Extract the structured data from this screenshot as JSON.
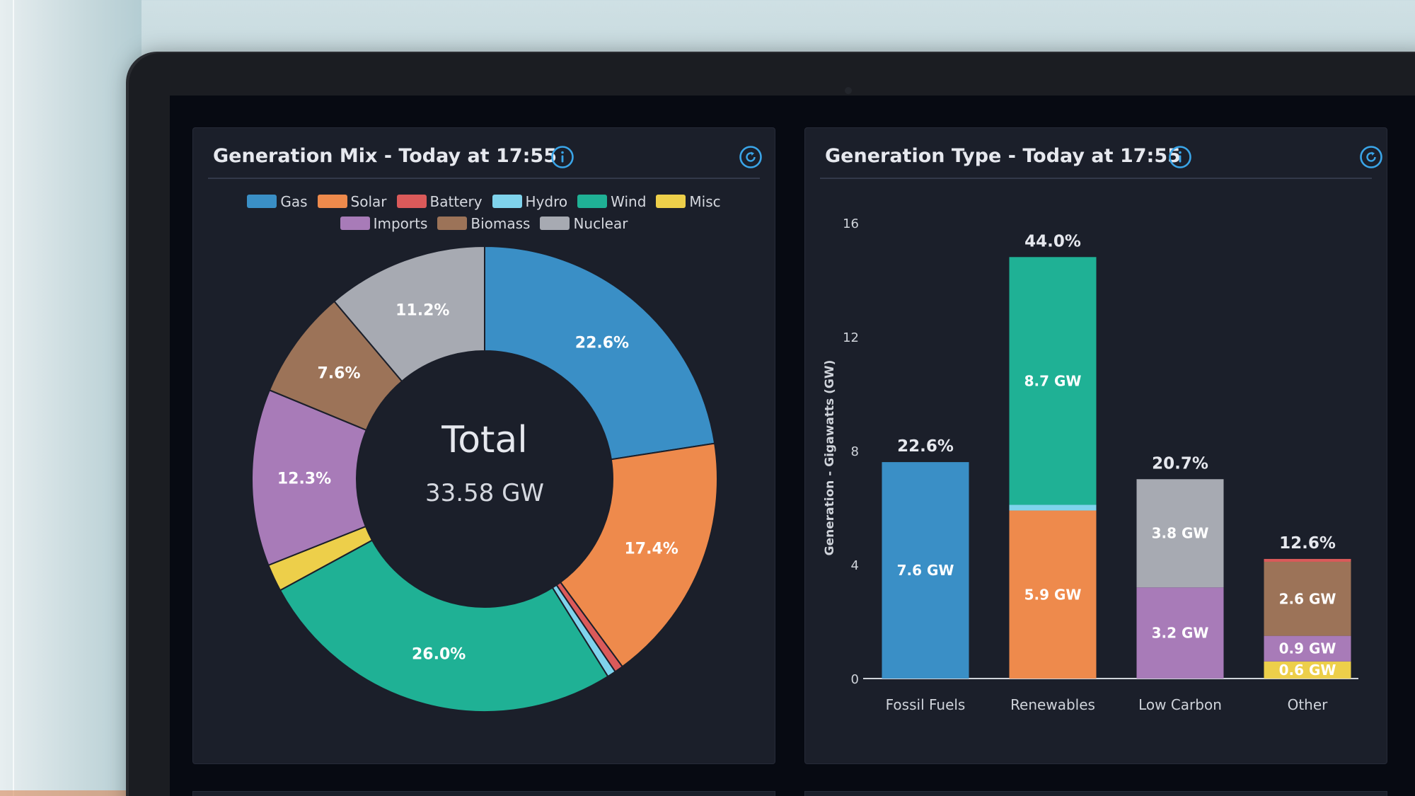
{
  "colors": {
    "gas": "#3a8fc6",
    "solar": "#ee8a4c",
    "battery": "#db5a5a",
    "hydro": "#7fd3ec",
    "wind": "#1fb195",
    "misc": "#edcf4a",
    "imports": "#a87bb8",
    "biomass": "#9c7358",
    "nuclear": "#a7aab2",
    "accent": "#3aa5e8"
  },
  "generation_mix": {
    "title": "Generation Mix - Today at 17:55",
    "info_icon": "info-icon",
    "refresh_icon": "refresh-icon",
    "legend": [
      {
        "label": "Gas",
        "key": "gas"
      },
      {
        "label": "Solar",
        "key": "solar"
      },
      {
        "label": "Battery",
        "key": "battery"
      },
      {
        "label": "Hydro",
        "key": "hydro"
      },
      {
        "label": "Wind",
        "key": "wind"
      },
      {
        "label": "Misc",
        "key": "misc"
      },
      {
        "label": "Imports",
        "key": "imports"
      },
      {
        "label": "Biomass",
        "key": "biomass"
      },
      {
        "label": "Nuclear",
        "key": "nuclear"
      }
    ],
    "center_label": "Total",
    "center_value": "33.58 GW"
  },
  "generation_type": {
    "title": "Generation Type - Today at 17:55",
    "info_icon": "info-icon",
    "refresh_icon": "refresh-icon"
  },
  "chart_data": [
    {
      "type": "pie",
      "donut": true,
      "title": "Generation Mix - Today at 17:55",
      "total_label": "Total",
      "total_value": "33.58 GW",
      "slices": [
        {
          "name": "Gas",
          "key": "gas",
          "value": 22.6,
          "label": "22.6%"
        },
        {
          "name": "Solar",
          "key": "solar",
          "value": 17.4,
          "label": "17.4%"
        },
        {
          "name": "Battery",
          "key": "battery",
          "value": 0.6,
          "label": ""
        },
        {
          "name": "Hydro",
          "key": "hydro",
          "value": 0.6,
          "label": ""
        },
        {
          "name": "Wind",
          "key": "wind",
          "value": 26.0,
          "label": "26.0%"
        },
        {
          "name": "Misc",
          "key": "misc",
          "value": 1.9,
          "label": ""
        },
        {
          "name": "Imports",
          "key": "imports",
          "value": 12.3,
          "label": "12.3%"
        },
        {
          "name": "Biomass",
          "key": "biomass",
          "value": 7.6,
          "label": "7.6%"
        },
        {
          "name": "Nuclear",
          "key": "nuclear",
          "value": 11.2,
          "label": "11.2%"
        }
      ],
      "legend_position": "top"
    },
    {
      "type": "bar",
      "stacked": true,
      "title": "Generation Type - Today at 17:55",
      "ylabel": "Generation - Gigawatts (GW)",
      "ylim": [
        0,
        16
      ],
      "yticks": [
        "0",
        "4",
        "8",
        "12",
        "16"
      ],
      "categories": [
        "Fossil Fuels",
        "Renewables",
        "Low Carbon",
        "Other"
      ],
      "totals_labels": [
        "22.6%",
        "44.0%",
        "20.7%",
        "12.6%"
      ],
      "stacks": [
        [
          {
            "key": "gas",
            "value": 7.6,
            "label": "7.6 GW"
          }
        ],
        [
          {
            "key": "solar",
            "value": 5.9,
            "label": "5.9 GW"
          },
          {
            "key": "hydro",
            "value": 0.2,
            "label": ""
          },
          {
            "key": "wind",
            "value": 8.7,
            "label": "8.7 GW"
          }
        ],
        [
          {
            "key": "imports",
            "value": 3.2,
            "label": "3.2 GW"
          },
          {
            "key": "nuclear",
            "value": 3.8,
            "label": "3.8 GW"
          }
        ],
        [
          {
            "key": "misc",
            "value": 0.6,
            "label": "0.6 GW"
          },
          {
            "key": "imports",
            "value": 0.9,
            "label": "0.9 GW"
          },
          {
            "key": "biomass",
            "value": 2.6,
            "label": "2.6 GW"
          },
          {
            "key": "battery",
            "value": 0.1,
            "label": ""
          }
        ]
      ]
    }
  ]
}
